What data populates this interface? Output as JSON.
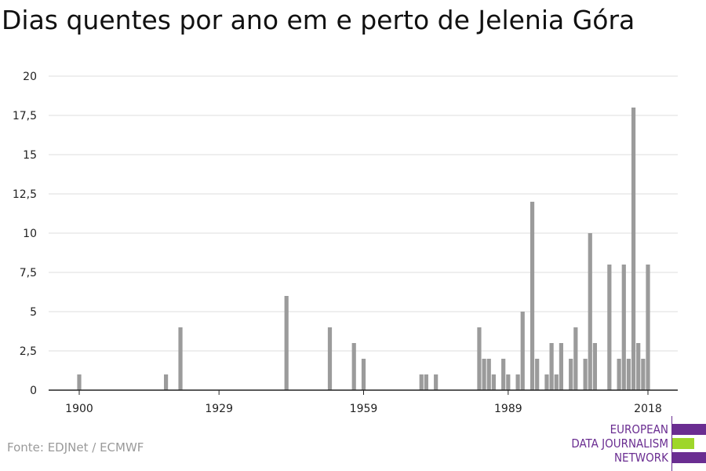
{
  "chart_data": {
    "type": "bar",
    "title": "Dias quentes por ano em e perto de Jelenia Góra",
    "xlabel": "",
    "ylabel": "",
    "ylim": [
      0,
      20
    ],
    "xlim": [
      1900,
      2018
    ],
    "y_ticks": [
      "0",
      "2,5",
      "5",
      "7,5",
      "10",
      "12,5",
      "15",
      "17,5",
      "20"
    ],
    "x_ticks": [
      "1900",
      "1929",
      "1959",
      "1989",
      "2018"
    ],
    "grid": true,
    "bar_color": "#9b9b9b",
    "points": [
      {
        "x": 1900,
        "y": 1
      },
      {
        "x": 1918,
        "y": 1
      },
      {
        "x": 1921,
        "y": 4
      },
      {
        "x": 1943,
        "y": 6
      },
      {
        "x": 1952,
        "y": 4
      },
      {
        "x": 1957,
        "y": 3
      },
      {
        "x": 1959,
        "y": 2
      },
      {
        "x": 1971,
        "y": 1
      },
      {
        "x": 1972,
        "y": 1
      },
      {
        "x": 1974,
        "y": 1
      },
      {
        "x": 1983,
        "y": 4
      },
      {
        "x": 1984,
        "y": 2
      },
      {
        "x": 1985,
        "y": 2
      },
      {
        "x": 1986,
        "y": 1
      },
      {
        "x": 1988,
        "y": 2
      },
      {
        "x": 1989,
        "y": 1
      },
      {
        "x": 1991,
        "y": 1
      },
      {
        "x": 1992,
        "y": 5
      },
      {
        "x": 1994,
        "y": 12
      },
      {
        "x": 1995,
        "y": 2
      },
      {
        "x": 1997,
        "y": 1
      },
      {
        "x": 1998,
        "y": 3
      },
      {
        "x": 1999,
        "y": 1
      },
      {
        "x": 2000,
        "y": 3
      },
      {
        "x": 2002,
        "y": 2
      },
      {
        "x": 2003,
        "y": 4
      },
      {
        "x": 2005,
        "y": 2
      },
      {
        "x": 2006,
        "y": 10
      },
      {
        "x": 2007,
        "y": 3
      },
      {
        "x": 2010,
        "y": 8
      },
      {
        "x": 2012,
        "y": 2
      },
      {
        "x": 2013,
        "y": 8
      },
      {
        "x": 2014,
        "y": 2
      },
      {
        "x": 2015,
        "y": 18
      },
      {
        "x": 2016,
        "y": 3
      },
      {
        "x": 2017,
        "y": 2
      },
      {
        "x": 2018,
        "y": 8
      }
    ]
  },
  "source": "Fonte: EDJNet / ECMWF",
  "logo": {
    "lines": [
      "EUROPEAN",
      "DATA JOURNALISM",
      "NETWORK"
    ],
    "purple": "#6a2d91",
    "green": "#9ed62a"
  }
}
